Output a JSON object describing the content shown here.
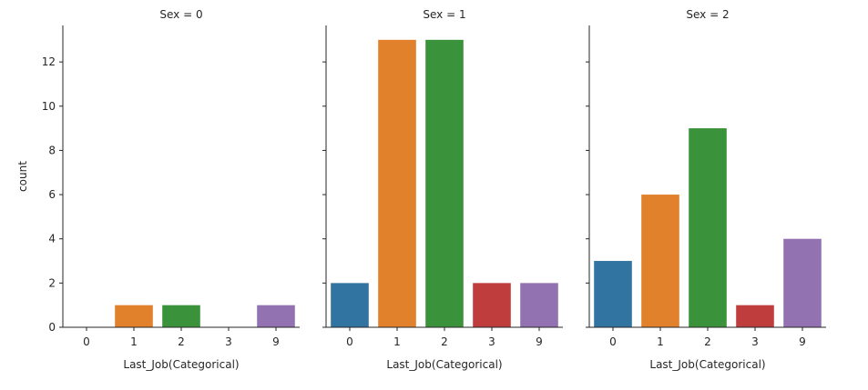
{
  "chart_data": {
    "type": "bar",
    "layout": "facet-grid",
    "ylabel": "count",
    "xlabel": "Last_Job(Categorical)",
    "categories": [
      "0",
      "1",
      "2",
      "3",
      "9"
    ],
    "ylim": [
      0,
      13.65
    ],
    "yticks": [
      0,
      2,
      4,
      6,
      8,
      10,
      12
    ],
    "category_colors": [
      "#3274a1",
      "#e1812c",
      "#3a923a",
      "#c03d3e",
      "#9372b2"
    ],
    "grid": false,
    "facets": [
      {
        "title": "Sex = 0",
        "values": [
          0,
          1,
          1,
          0,
          1
        ]
      },
      {
        "title": "Sex = 1",
        "values": [
          2,
          13,
          13,
          2,
          2
        ]
      },
      {
        "title": "Sex = 2",
        "values": [
          3,
          6,
          9,
          1,
          4
        ]
      }
    ]
  }
}
